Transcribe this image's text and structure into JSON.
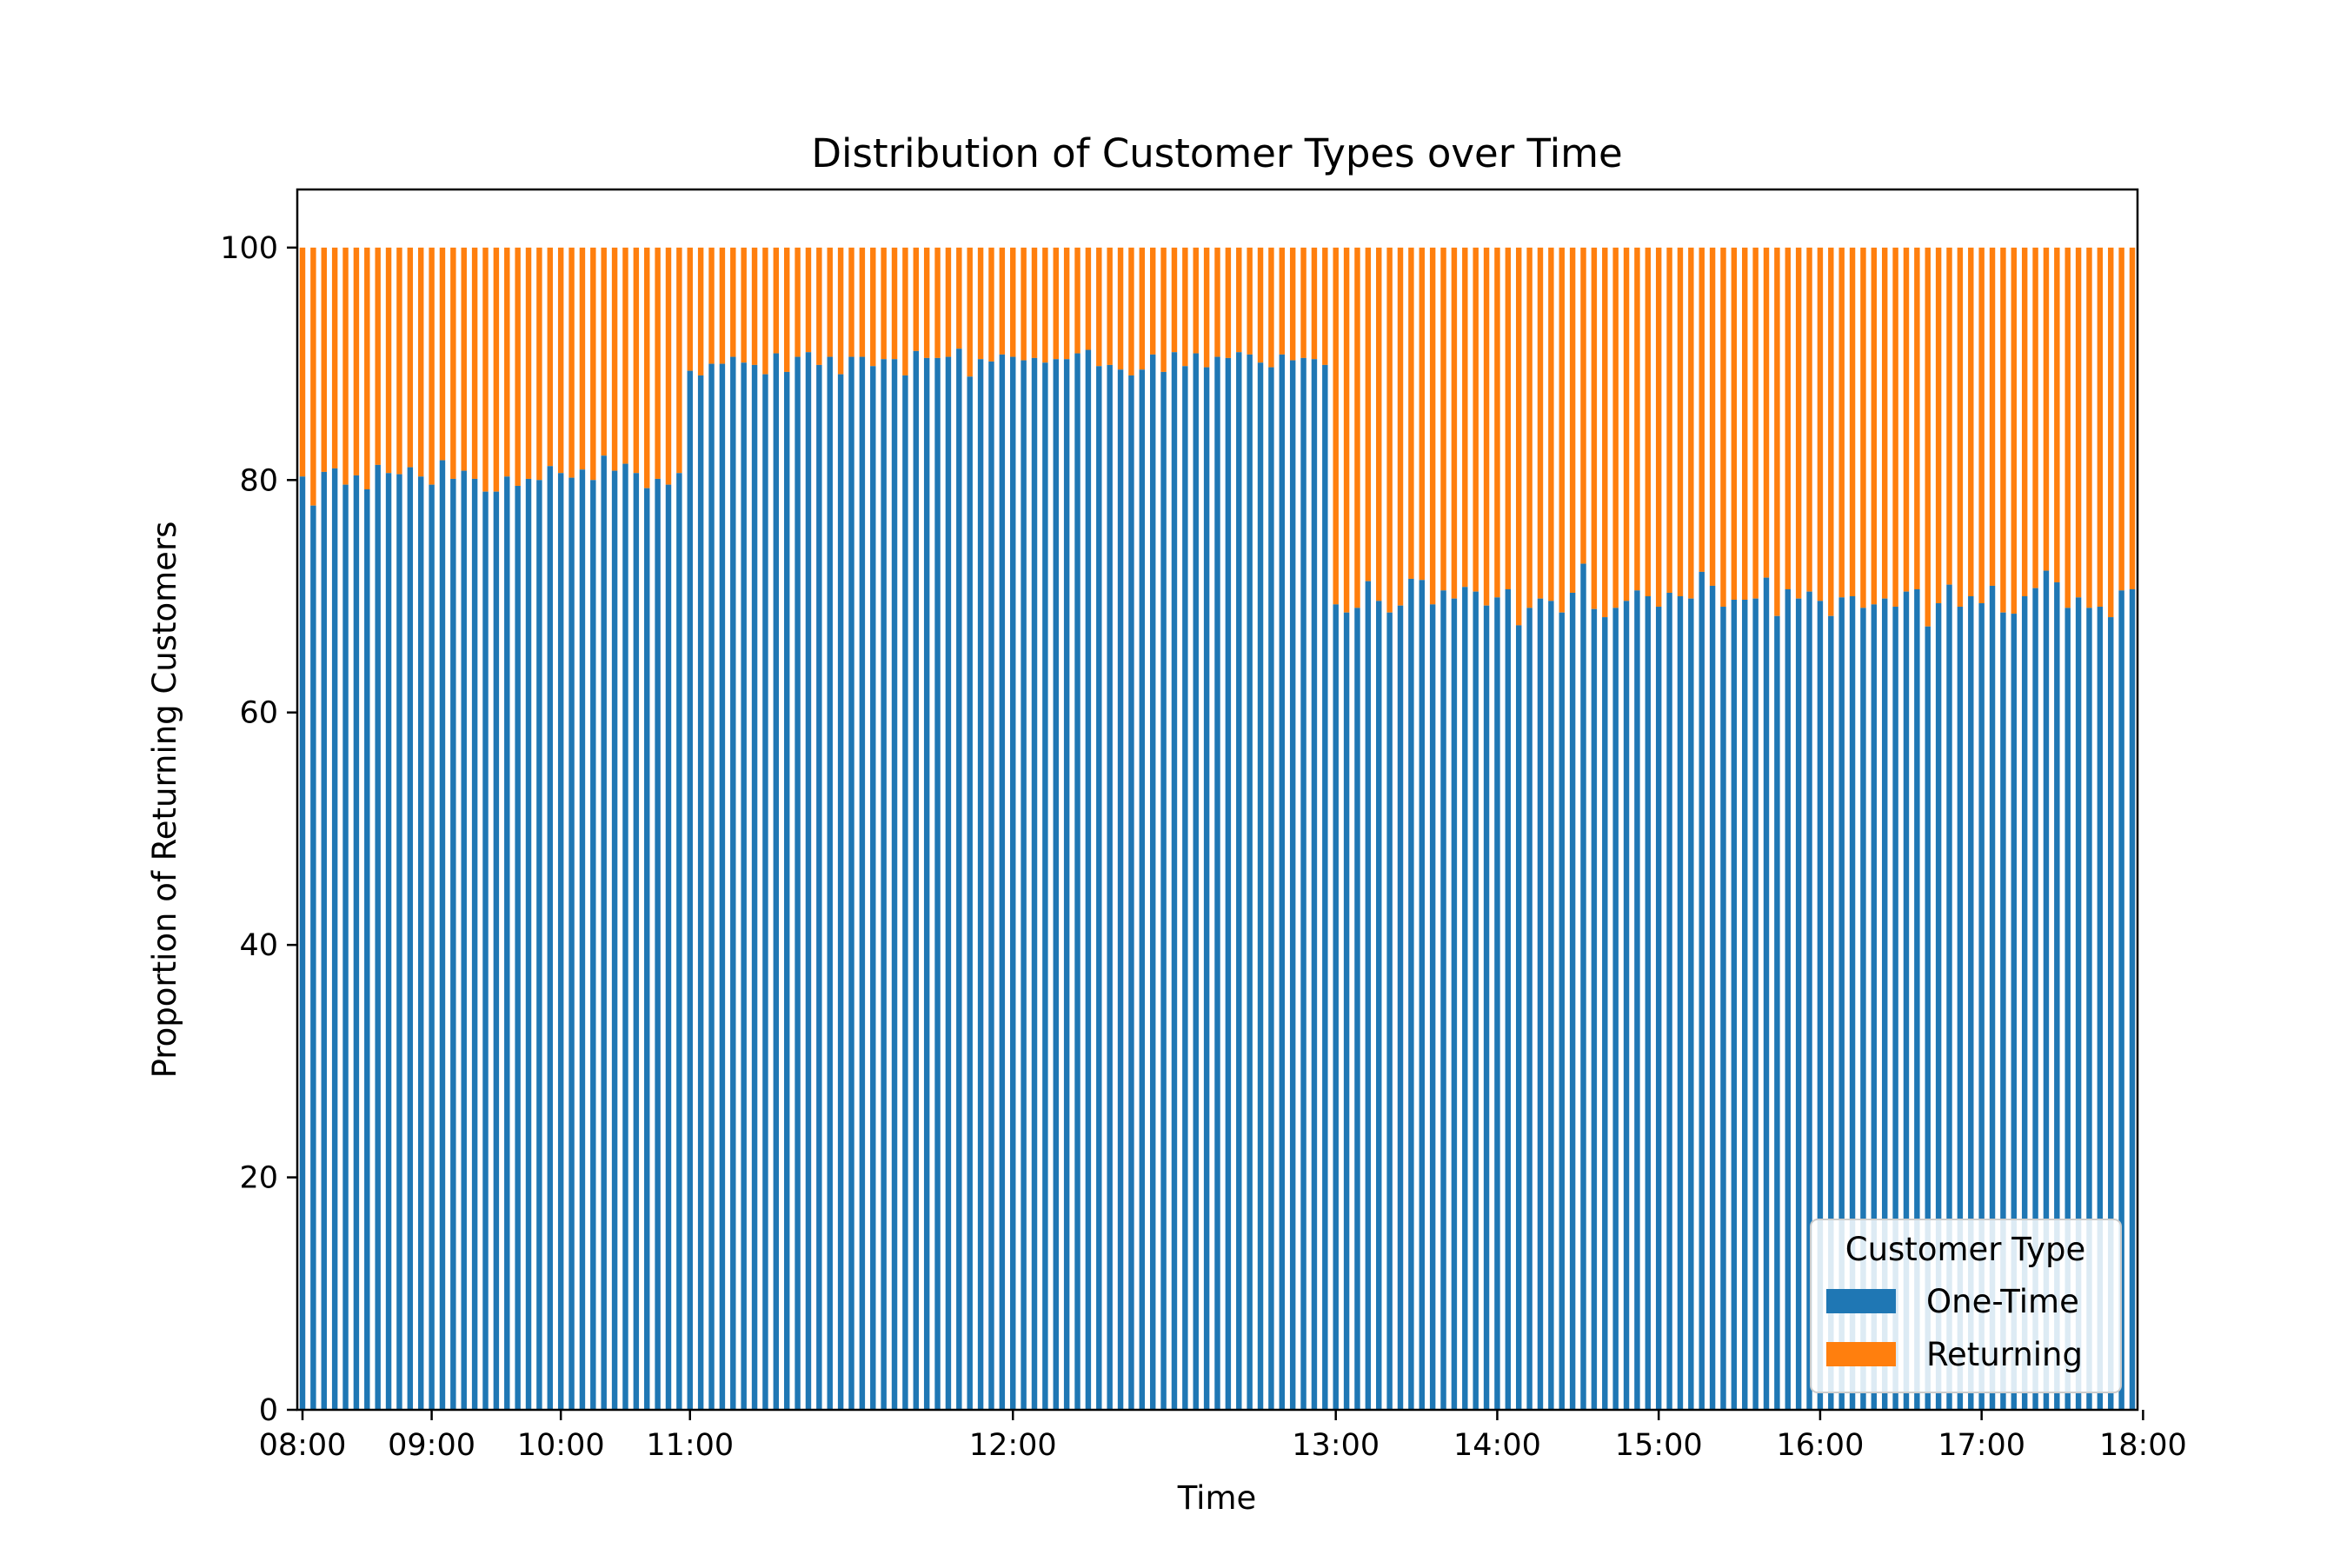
{
  "chart_data": {
    "type": "bar",
    "stacked": true,
    "title": "Distribution of Customer Types over Time",
    "xlabel": "Time",
    "ylabel": "Proportion of Returning Customers",
    "ylim": [
      0,
      105
    ],
    "yticks": [
      0,
      20,
      40,
      60,
      80,
      100
    ],
    "x_ticks": [
      {
        "label": "08:00",
        "index": 0
      },
      {
        "label": "09:00",
        "index": 12
      },
      {
        "label": "10:00",
        "index": 24
      },
      {
        "label": "11:00",
        "index": 36
      },
      {
        "label": "12:00",
        "index": 66
      },
      {
        "label": "13:00",
        "index": 96
      },
      {
        "label": "14:00",
        "index": 111
      },
      {
        "label": "15:00",
        "index": 126
      },
      {
        "label": "16:00",
        "index": 141
      },
      {
        "label": "17:00",
        "index": 156
      },
      {
        "label": "18:00",
        "index": 171
      }
    ],
    "x_categories_note": "",
    "legend": {
      "title": "Customer Type",
      "placement": "lower right"
    },
    "series": [
      {
        "name": "One-Time",
        "color": "#1f77b4",
        "values": [
          80.3,
          77.8,
          80.7,
          81.0,
          79.6,
          80.4,
          79.2,
          81.3,
          80.6,
          80.5,
          81.1,
          80.3,
          79.6,
          81.7,
          80.1,
          80.8,
          80.1,
          79.0,
          79.0,
          80.3,
          79.5,
          80.1,
          80.0,
          81.2,
          80.6,
          80.2,
          80.9,
          80.0,
          82.1,
          80.8,
          81.4,
          80.6,
          79.3,
          80.1,
          79.6,
          80.6,
          89.4,
          89.0,
          90.0,
          90.0,
          90.6,
          90.1,
          89.9,
          89.1,
          90.9,
          89.3,
          90.6,
          91.0,
          89.9,
          90.6,
          89.1,
          90.6,
          90.6,
          89.8,
          90.4,
          90.4,
          89.0,
          91.1,
          90.5,
          90.5,
          90.6,
          91.3,
          88.9,
          90.4,
          90.2,
          90.8,
          90.6,
          90.3,
          90.5,
          90.1,
          90.4,
          90.4,
          90.9,
          91.2,
          89.8,
          89.9,
          89.5,
          89.0,
          89.5,
          90.8,
          89.3,
          91.0,
          89.8,
          90.9,
          89.7,
          90.6,
          90.5,
          91.0,
          90.8,
          90.1,
          89.7,
          90.8,
          90.3,
          90.5,
          90.4,
          89.9,
          69.3,
          68.6,
          69.0,
          71.3,
          69.6,
          68.6,
          69.2,
          71.5,
          71.4,
          69.3,
          70.5,
          69.8,
          70.8,
          70.4,
          69.2,
          69.9,
          70.6,
          67.5,
          69.0,
          69.8,
          69.6,
          68.6,
          70.3,
          72.8,
          68.9,
          68.2,
          69.0,
          69.6,
          70.5,
          70.0,
          69.1,
          70.3,
          70.0,
          69.8,
          72.1,
          70.9,
          69.1,
          69.7,
          69.7,
          69.8,
          71.6,
          68.3,
          70.6,
          69.8,
          70.4,
          69.6,
          68.3,
          69.9,
          70.0,
          69.0,
          69.3,
          69.8,
          69.1,
          70.4,
          70.6,
          67.4,
          69.4,
          71.0,
          69.1,
          70.0,
          69.4,
          70.9,
          68.6,
          68.5,
          70.0,
          70.7,
          72.2,
          71.2,
          69.0,
          69.9,
          69.0,
          69.1,
          68.2,
          70.5,
          70.6
        ]
      },
      {
        "name": "Returning",
        "color": "#ff7f0e",
        "values": "complement_to_100"
      }
    ]
  }
}
